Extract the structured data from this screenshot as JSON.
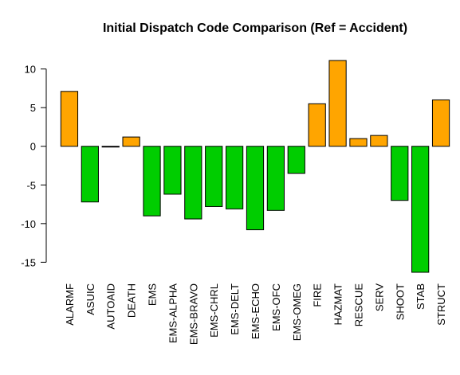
{
  "chart_data": {
    "type": "bar",
    "title": "Initial Dispatch Code Comparison (Ref = Accident)",
    "xlabel": "",
    "ylabel": "",
    "ylim": [
      -16.3,
      11.2
    ],
    "yticks": [
      10,
      5,
      0,
      -5,
      -10,
      -15
    ],
    "grid": false,
    "legend": "none",
    "colors": {
      "positive": "#FFA500",
      "negative": "#00CD00",
      "stroke": "#000000"
    },
    "categories": [
      "ALARMF",
      "ASUIC",
      "AUTOAID",
      "DEATH",
      "EMS",
      "EMS-ALPHA",
      "EMS-BRAVO",
      "EMS-CHRL",
      "EMS-DELT",
      "EMS-ECHO",
      "EMS-OFC",
      "EMS-OMEG",
      "FIRE",
      "HAZMAT",
      "RESCUE",
      "SERV",
      "SHOOT",
      "STAB",
      "STRUCT"
    ],
    "values": [
      7.1,
      -7.2,
      -0.1,
      1.2,
      -9.0,
      -6.2,
      -9.4,
      -7.8,
      -8.1,
      -10.8,
      -8.3,
      -3.5,
      5.5,
      11.1,
      1.0,
      1.4,
      -7.0,
      -16.3,
      6.0
    ]
  }
}
